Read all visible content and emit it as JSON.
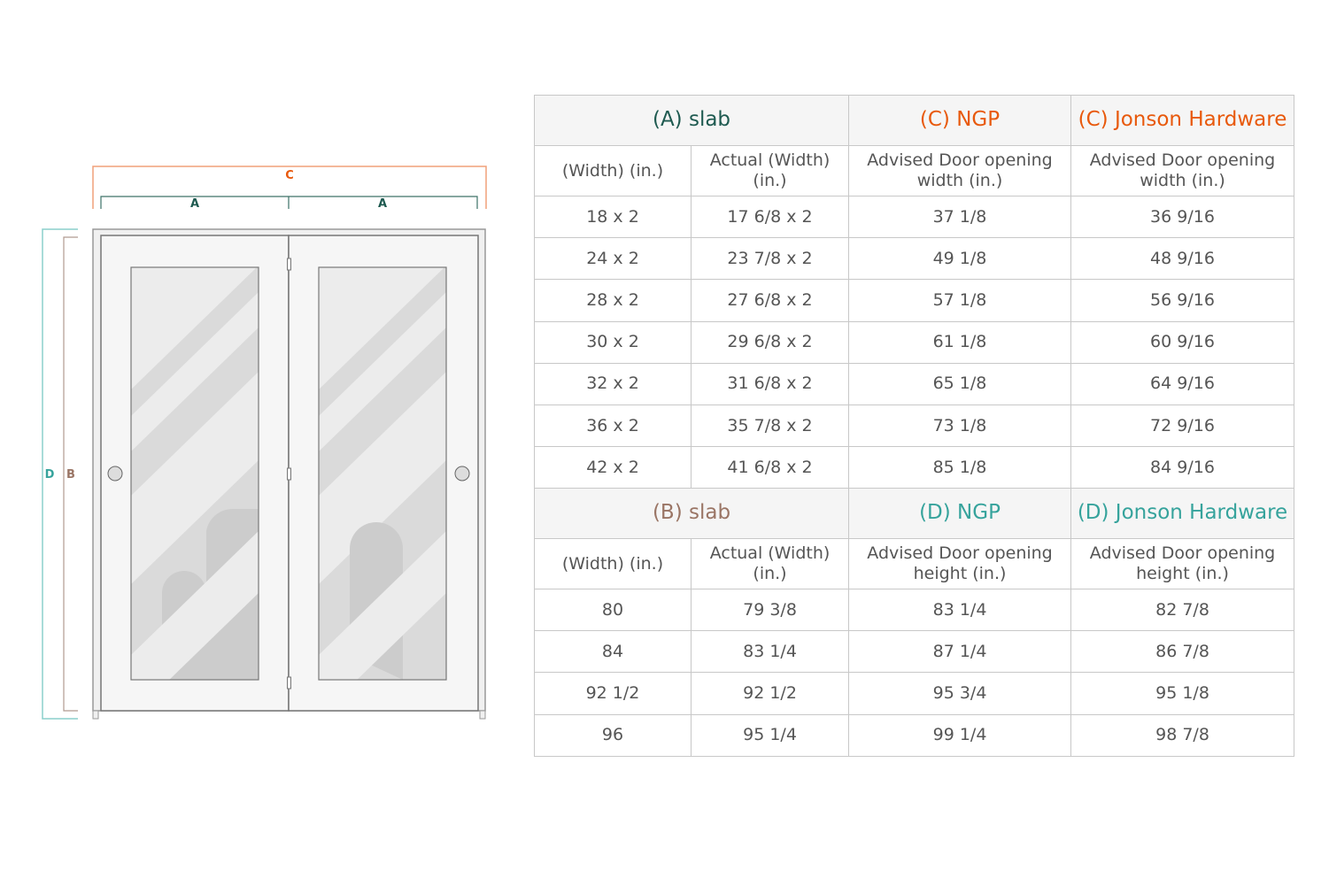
{
  "colors": {
    "A": "#1e5a50",
    "C": "#e8590c",
    "B": "#9a7565",
    "D": "#36a39c"
  },
  "diagram": {
    "labels": {
      "C": "C",
      "A1": "A",
      "A2": "A",
      "D": "D",
      "B": "B"
    }
  },
  "width_table": {
    "headers": [
      "(A) slab",
      "(C) NGP",
      "(C) Jonson Hardware"
    ],
    "subheaders": [
      "(Width) (in.)",
      "Actual (Width) (in.)",
      "Advised Door opening width (in.)",
      "Advised Door opening width (in.)"
    ],
    "rows": [
      [
        "18 x 2",
        "17 6/8 x 2",
        "37 1/8",
        "36 9/16"
      ],
      [
        "24 x 2",
        "23 7/8 x 2",
        "49 1/8",
        "48 9/16"
      ],
      [
        "28 x 2",
        "27 6/8 x 2",
        "57 1/8",
        "56 9/16"
      ],
      [
        "30 x 2",
        "29 6/8 x 2",
        "61 1/8",
        "60 9/16"
      ],
      [
        "32 x 2",
        "31 6/8 x 2",
        "65 1/8",
        "64 9/16"
      ],
      [
        "36 x 2",
        "35 7/8 x 2",
        "73 1/8",
        "72 9/16"
      ],
      [
        "42 x 2",
        "41 6/8 x 2",
        "85 1/8",
        "84 9/16"
      ]
    ]
  },
  "height_table": {
    "headers": [
      "(B) slab",
      "(D) NGP",
      "(D) Jonson Hardware"
    ],
    "subheaders": [
      "(Width) (in.)",
      "Actual (Width) (in.)",
      "Advised Door opening height (in.)",
      "Advised Door opening height (in.)"
    ],
    "rows": [
      [
        "80",
        "79 3/8",
        "83 1/4",
        "82 7/8"
      ],
      [
        "84",
        "83 1/4",
        "87 1/4",
        "86 7/8"
      ],
      [
        "92 1/2",
        "92 1/2",
        "95 3/4",
        "95 1/8"
      ],
      [
        "96",
        "95 1/4",
        "99 1/4",
        "98 7/8"
      ]
    ]
  }
}
